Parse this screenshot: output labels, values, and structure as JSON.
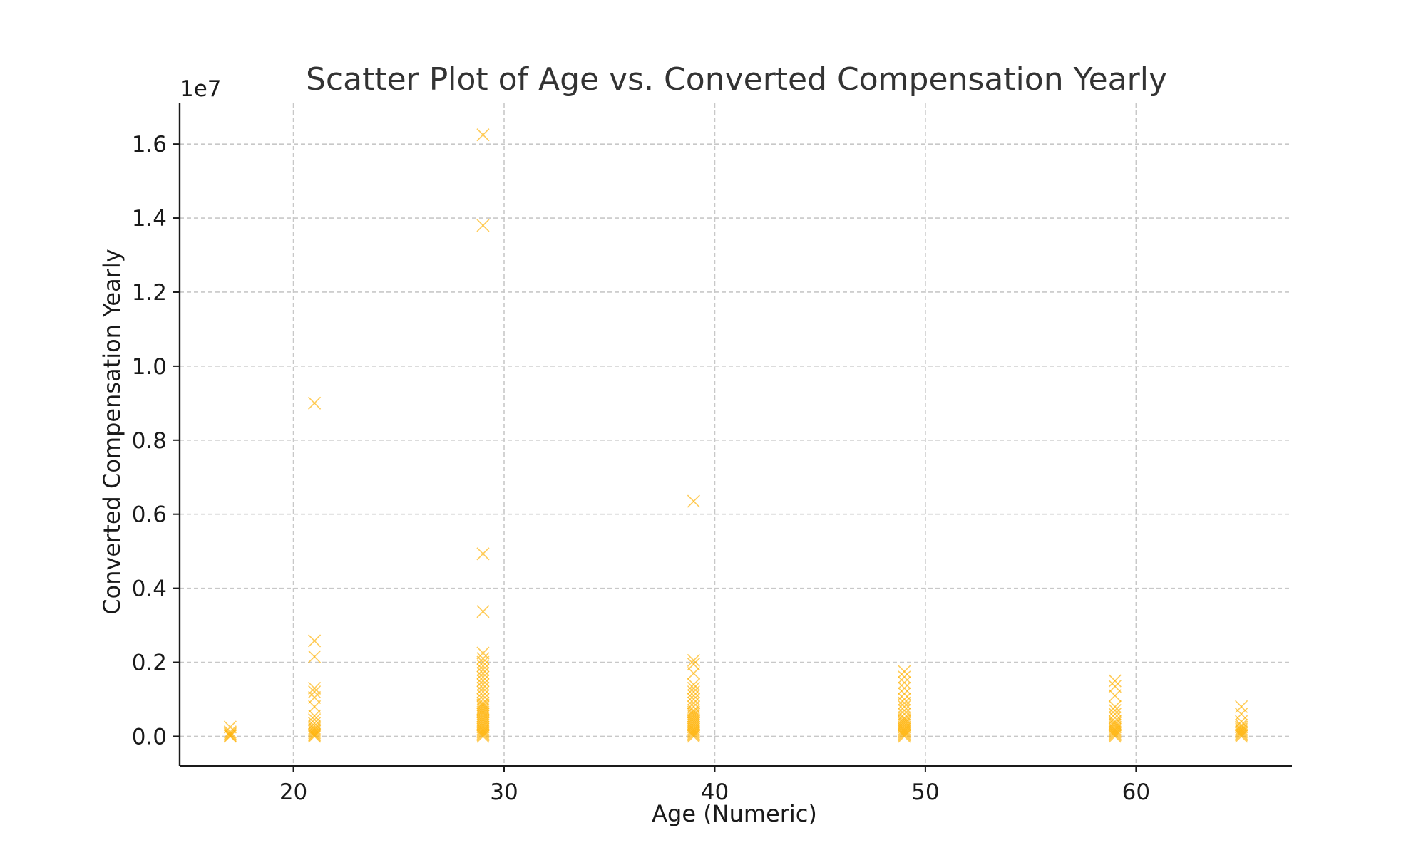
{
  "chart_data": {
    "type": "scatter",
    "title": "Scatter Plot of Age vs. Converted Compensation Yearly",
    "xlabel": "Age (Numeric)",
    "ylabel": "Converted Compensation Yearly",
    "y_offset_text": "1e7",
    "y_scale_multiplier": 10000000,
    "xlim": [
      14.6,
      67.4
    ],
    "ylim": [
      -0.08,
      1.71
    ],
    "x_ticks": [
      20,
      30,
      40,
      50,
      60
    ],
    "x_tick_labels": [
      "20",
      "30",
      "40",
      "50",
      "60"
    ],
    "y_ticks": [
      0.0,
      0.2,
      0.4,
      0.6,
      0.8,
      1.0,
      1.2,
      1.4,
      1.6
    ],
    "y_tick_labels": [
      "0.0",
      "0.2",
      "0.4",
      "0.6",
      "0.8",
      "1.0",
      "1.2",
      "1.4",
      "1.6"
    ],
    "grid": true,
    "marker": "x",
    "marker_color": "#ffb000",
    "points_unit_note": "y values in units of 1e7",
    "points": [
      {
        "x": 17,
        "y": 0.0
      },
      {
        "x": 17,
        "y": 0.002
      },
      {
        "x": 17,
        "y": 0.005
      },
      {
        "x": 17,
        "y": 0.008
      },
      {
        "x": 17,
        "y": 0.012
      },
      {
        "x": 17,
        "y": 0.025
      },
      {
        "x": 21,
        "y": 0.0
      },
      {
        "x": 21,
        "y": 0.003
      },
      {
        "x": 21,
        "y": 0.006
      },
      {
        "x": 21,
        "y": 0.01
      },
      {
        "x": 21,
        "y": 0.014
      },
      {
        "x": 21,
        "y": 0.018
      },
      {
        "x": 21,
        "y": 0.022
      },
      {
        "x": 21,
        "y": 0.028
      },
      {
        "x": 21,
        "y": 0.035
      },
      {
        "x": 21,
        "y": 0.045
      },
      {
        "x": 21,
        "y": 0.055
      },
      {
        "x": 21,
        "y": 0.08
      },
      {
        "x": 21,
        "y": 0.105
      },
      {
        "x": 21,
        "y": 0.12
      },
      {
        "x": 21,
        "y": 0.13
      },
      {
        "x": 21,
        "y": 0.215
      },
      {
        "x": 21,
        "y": 0.258
      },
      {
        "x": 21,
        "y": 0.9
      },
      {
        "x": 29,
        "y": 0.0
      },
      {
        "x": 29,
        "y": 0.004
      },
      {
        "x": 29,
        "y": 0.008
      },
      {
        "x": 29,
        "y": 0.012
      },
      {
        "x": 29,
        "y": 0.016
      },
      {
        "x": 29,
        "y": 0.02
      },
      {
        "x": 29,
        "y": 0.025
      },
      {
        "x": 29,
        "y": 0.03
      },
      {
        "x": 29,
        "y": 0.035
      },
      {
        "x": 29,
        "y": 0.04
      },
      {
        "x": 29,
        "y": 0.045
      },
      {
        "x": 29,
        "y": 0.05
      },
      {
        "x": 29,
        "y": 0.055
      },
      {
        "x": 29,
        "y": 0.06
      },
      {
        "x": 29,
        "y": 0.065
      },
      {
        "x": 29,
        "y": 0.07
      },
      {
        "x": 29,
        "y": 0.075
      },
      {
        "x": 29,
        "y": 0.08
      },
      {
        "x": 29,
        "y": 0.085
      },
      {
        "x": 29,
        "y": 0.09
      },
      {
        "x": 29,
        "y": 0.1
      },
      {
        "x": 29,
        "y": 0.11
      },
      {
        "x": 29,
        "y": 0.12
      },
      {
        "x": 29,
        "y": 0.13
      },
      {
        "x": 29,
        "y": 0.14
      },
      {
        "x": 29,
        "y": 0.15
      },
      {
        "x": 29,
        "y": 0.16
      },
      {
        "x": 29,
        "y": 0.17
      },
      {
        "x": 29,
        "y": 0.18
      },
      {
        "x": 29,
        "y": 0.19
      },
      {
        "x": 29,
        "y": 0.2
      },
      {
        "x": 29,
        "y": 0.21
      },
      {
        "x": 29,
        "y": 0.225
      },
      {
        "x": 29,
        "y": 0.337
      },
      {
        "x": 29,
        "y": 0.493
      },
      {
        "x": 29,
        "y": 1.38
      },
      {
        "x": 29,
        "y": 1.625
      },
      {
        "x": 39,
        "y": 0.0
      },
      {
        "x": 39,
        "y": 0.004
      },
      {
        "x": 39,
        "y": 0.008
      },
      {
        "x": 39,
        "y": 0.012
      },
      {
        "x": 39,
        "y": 0.016
      },
      {
        "x": 39,
        "y": 0.02
      },
      {
        "x": 39,
        "y": 0.025
      },
      {
        "x": 39,
        "y": 0.03
      },
      {
        "x": 39,
        "y": 0.035
      },
      {
        "x": 39,
        "y": 0.04
      },
      {
        "x": 39,
        "y": 0.045
      },
      {
        "x": 39,
        "y": 0.05
      },
      {
        "x": 39,
        "y": 0.055
      },
      {
        "x": 39,
        "y": 0.06
      },
      {
        "x": 39,
        "y": 0.065
      },
      {
        "x": 39,
        "y": 0.07
      },
      {
        "x": 39,
        "y": 0.08
      },
      {
        "x": 39,
        "y": 0.09
      },
      {
        "x": 39,
        "y": 0.1
      },
      {
        "x": 39,
        "y": 0.11
      },
      {
        "x": 39,
        "y": 0.12
      },
      {
        "x": 39,
        "y": 0.13
      },
      {
        "x": 39,
        "y": 0.14
      },
      {
        "x": 39,
        "y": 0.17
      },
      {
        "x": 39,
        "y": 0.195
      },
      {
        "x": 39,
        "y": 0.205
      },
      {
        "x": 39,
        "y": 0.635
      },
      {
        "x": 49,
        "y": 0.0
      },
      {
        "x": 49,
        "y": 0.004
      },
      {
        "x": 49,
        "y": 0.008
      },
      {
        "x": 49,
        "y": 0.012
      },
      {
        "x": 49,
        "y": 0.016
      },
      {
        "x": 49,
        "y": 0.02
      },
      {
        "x": 49,
        "y": 0.025
      },
      {
        "x": 49,
        "y": 0.03
      },
      {
        "x": 49,
        "y": 0.035
      },
      {
        "x": 49,
        "y": 0.04
      },
      {
        "x": 49,
        "y": 0.045
      },
      {
        "x": 49,
        "y": 0.05
      },
      {
        "x": 49,
        "y": 0.06
      },
      {
        "x": 49,
        "y": 0.07
      },
      {
        "x": 49,
        "y": 0.08
      },
      {
        "x": 49,
        "y": 0.09
      },
      {
        "x": 49,
        "y": 0.1
      },
      {
        "x": 49,
        "y": 0.115
      },
      {
        "x": 49,
        "y": 0.13
      },
      {
        "x": 49,
        "y": 0.145
      },
      {
        "x": 49,
        "y": 0.16
      },
      {
        "x": 49,
        "y": 0.175
      },
      {
        "x": 59,
        "y": 0.0
      },
      {
        "x": 59,
        "y": 0.004
      },
      {
        "x": 59,
        "y": 0.008
      },
      {
        "x": 59,
        "y": 0.012
      },
      {
        "x": 59,
        "y": 0.016
      },
      {
        "x": 59,
        "y": 0.02
      },
      {
        "x": 59,
        "y": 0.025
      },
      {
        "x": 59,
        "y": 0.03
      },
      {
        "x": 59,
        "y": 0.035
      },
      {
        "x": 59,
        "y": 0.04
      },
      {
        "x": 59,
        "y": 0.05
      },
      {
        "x": 59,
        "y": 0.06
      },
      {
        "x": 59,
        "y": 0.07
      },
      {
        "x": 59,
        "y": 0.08
      },
      {
        "x": 59,
        "y": 0.11
      },
      {
        "x": 59,
        "y": 0.135
      },
      {
        "x": 59,
        "y": 0.15
      },
      {
        "x": 65,
        "y": 0.0
      },
      {
        "x": 65,
        "y": 0.004
      },
      {
        "x": 65,
        "y": 0.008
      },
      {
        "x": 65,
        "y": 0.012
      },
      {
        "x": 65,
        "y": 0.016
      },
      {
        "x": 65,
        "y": 0.02
      },
      {
        "x": 65,
        "y": 0.025
      },
      {
        "x": 65,
        "y": 0.03
      },
      {
        "x": 65,
        "y": 0.04
      },
      {
        "x": 65,
        "y": 0.06
      },
      {
        "x": 65,
        "y": 0.08
      }
    ]
  }
}
